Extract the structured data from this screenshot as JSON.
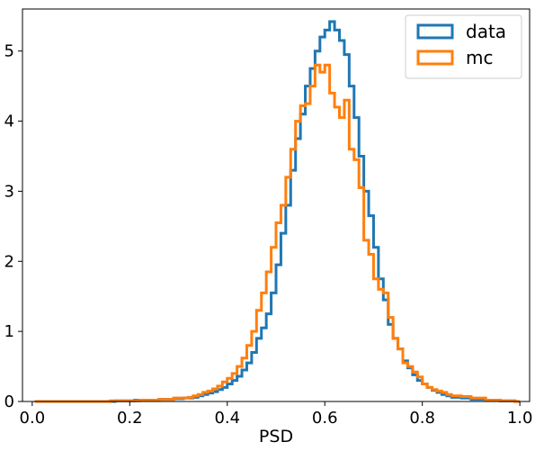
{
  "chart_data": {
    "type": "step-histogram",
    "title": "",
    "xlabel": "PSD",
    "ylabel": "",
    "xlim": [
      -0.02,
      1.02
    ],
    "ylim": [
      0,
      5.6
    ],
    "xticks": [
      0.0,
      0.2,
      0.4,
      0.6,
      0.8,
      1.0
    ],
    "xtick_labels": [
      "0.0",
      "0.2",
      "0.4",
      "0.6",
      "0.8",
      "1.0"
    ],
    "yticks": [
      0,
      1,
      2,
      3,
      4,
      5
    ],
    "ytick_labels": [
      "0",
      "1",
      "2",
      "3",
      "4",
      "5"
    ],
    "grid": false,
    "legend_position": "top-right",
    "bin_width": 0.01,
    "series": [
      {
        "name": "data",
        "color": "#1f77b4",
        "bins": [
          [
            0.005,
            0.0
          ],
          [
            0.17,
            0.01
          ],
          [
            0.21,
            0.02
          ],
          [
            0.26,
            0.03
          ],
          [
            0.29,
            0.04
          ],
          [
            0.31,
            0.05
          ],
          [
            0.33,
            0.06
          ],
          [
            0.34,
            0.08
          ],
          [
            0.35,
            0.1
          ],
          [
            0.36,
            0.12
          ],
          [
            0.37,
            0.14
          ],
          [
            0.38,
            0.17
          ],
          [
            0.39,
            0.2
          ],
          [
            0.4,
            0.25
          ],
          [
            0.41,
            0.3
          ],
          [
            0.42,
            0.36
          ],
          [
            0.43,
            0.45
          ],
          [
            0.44,
            0.55
          ],
          [
            0.45,
            0.7
          ],
          [
            0.46,
            0.9
          ],
          [
            0.47,
            1.05
          ],
          [
            0.48,
            1.25
          ],
          [
            0.49,
            1.55
          ],
          [
            0.5,
            1.95
          ],
          [
            0.51,
            2.4
          ],
          [
            0.52,
            2.8
          ],
          [
            0.53,
            3.3
          ],
          [
            0.54,
            3.75
          ],
          [
            0.55,
            4.1
          ],
          [
            0.56,
            4.5
          ],
          [
            0.57,
            4.75
          ],
          [
            0.58,
            5.0
          ],
          [
            0.59,
            5.2
          ],
          [
            0.6,
            5.3
          ],
          [
            0.61,
            5.42
          ],
          [
            0.62,
            5.3
          ],
          [
            0.63,
            5.15
          ],
          [
            0.64,
            4.95
          ],
          [
            0.65,
            4.5
          ],
          [
            0.66,
            4.05
          ],
          [
            0.67,
            3.5
          ],
          [
            0.68,
            3.0
          ],
          [
            0.69,
            2.65
          ],
          [
            0.7,
            2.2
          ],
          [
            0.71,
            1.75
          ],
          [
            0.72,
            1.45
          ],
          [
            0.73,
            1.1
          ],
          [
            0.74,
            0.9
          ],
          [
            0.75,
            0.75
          ],
          [
            0.76,
            0.58
          ],
          [
            0.77,
            0.48
          ],
          [
            0.78,
            0.38
          ],
          [
            0.79,
            0.3
          ],
          [
            0.8,
            0.25
          ],
          [
            0.81,
            0.2
          ],
          [
            0.82,
            0.16
          ],
          [
            0.83,
            0.13
          ],
          [
            0.84,
            0.1
          ],
          [
            0.85,
            0.08
          ],
          [
            0.86,
            0.06
          ],
          [
            0.88,
            0.05
          ],
          [
            0.9,
            0.03
          ],
          [
            0.93,
            0.02
          ],
          [
            0.96,
            0.01
          ],
          [
            0.99,
            0.0
          ]
        ]
      },
      {
        "name": "mc",
        "color": "#ff7f0e",
        "bins": [
          [
            0.005,
            0.0
          ],
          [
            0.16,
            0.01
          ],
          [
            0.22,
            0.02
          ],
          [
            0.26,
            0.03
          ],
          [
            0.29,
            0.05
          ],
          [
            0.32,
            0.06
          ],
          [
            0.33,
            0.08
          ],
          [
            0.34,
            0.1
          ],
          [
            0.35,
            0.13
          ],
          [
            0.36,
            0.15
          ],
          [
            0.37,
            0.18
          ],
          [
            0.38,
            0.22
          ],
          [
            0.39,
            0.28
          ],
          [
            0.4,
            0.33
          ],
          [
            0.41,
            0.4
          ],
          [
            0.42,
            0.5
          ],
          [
            0.43,
            0.62
          ],
          [
            0.44,
            0.8
          ],
          [
            0.45,
            1.0
          ],
          [
            0.46,
            1.3
          ],
          [
            0.47,
            1.55
          ],
          [
            0.48,
            1.85
          ],
          [
            0.49,
            2.2
          ],
          [
            0.5,
            2.55
          ],
          [
            0.51,
            2.8
          ],
          [
            0.52,
            3.2
          ],
          [
            0.53,
            3.6
          ],
          [
            0.54,
            4.0
          ],
          [
            0.55,
            4.22
          ],
          [
            0.56,
            4.25
          ],
          [
            0.57,
            4.5
          ],
          [
            0.58,
            4.8
          ],
          [
            0.59,
            4.7
          ],
          [
            0.6,
            4.8
          ],
          [
            0.61,
            4.4
          ],
          [
            0.62,
            4.2
          ],
          [
            0.63,
            4.05
          ],
          [
            0.64,
            4.3
          ],
          [
            0.65,
            3.6
          ],
          [
            0.66,
            3.45
          ],
          [
            0.67,
            3.05
          ],
          [
            0.68,
            2.3
          ],
          [
            0.69,
            2.1
          ],
          [
            0.7,
            1.75
          ],
          [
            0.71,
            1.6
          ],
          [
            0.72,
            1.55
          ],
          [
            0.73,
            1.2
          ],
          [
            0.74,
            0.9
          ],
          [
            0.75,
            0.75
          ],
          [
            0.76,
            0.55
          ],
          [
            0.77,
            0.5
          ],
          [
            0.78,
            0.42
          ],
          [
            0.79,
            0.35
          ],
          [
            0.8,
            0.25
          ],
          [
            0.81,
            0.2
          ],
          [
            0.82,
            0.17
          ],
          [
            0.83,
            0.15
          ],
          [
            0.84,
            0.13
          ],
          [
            0.85,
            0.1
          ],
          [
            0.86,
            0.08
          ],
          [
            0.88,
            0.07
          ],
          [
            0.9,
            0.05
          ],
          [
            0.93,
            0.02
          ],
          [
            0.96,
            0.01
          ],
          [
            0.99,
            0.0
          ]
        ]
      }
    ]
  }
}
